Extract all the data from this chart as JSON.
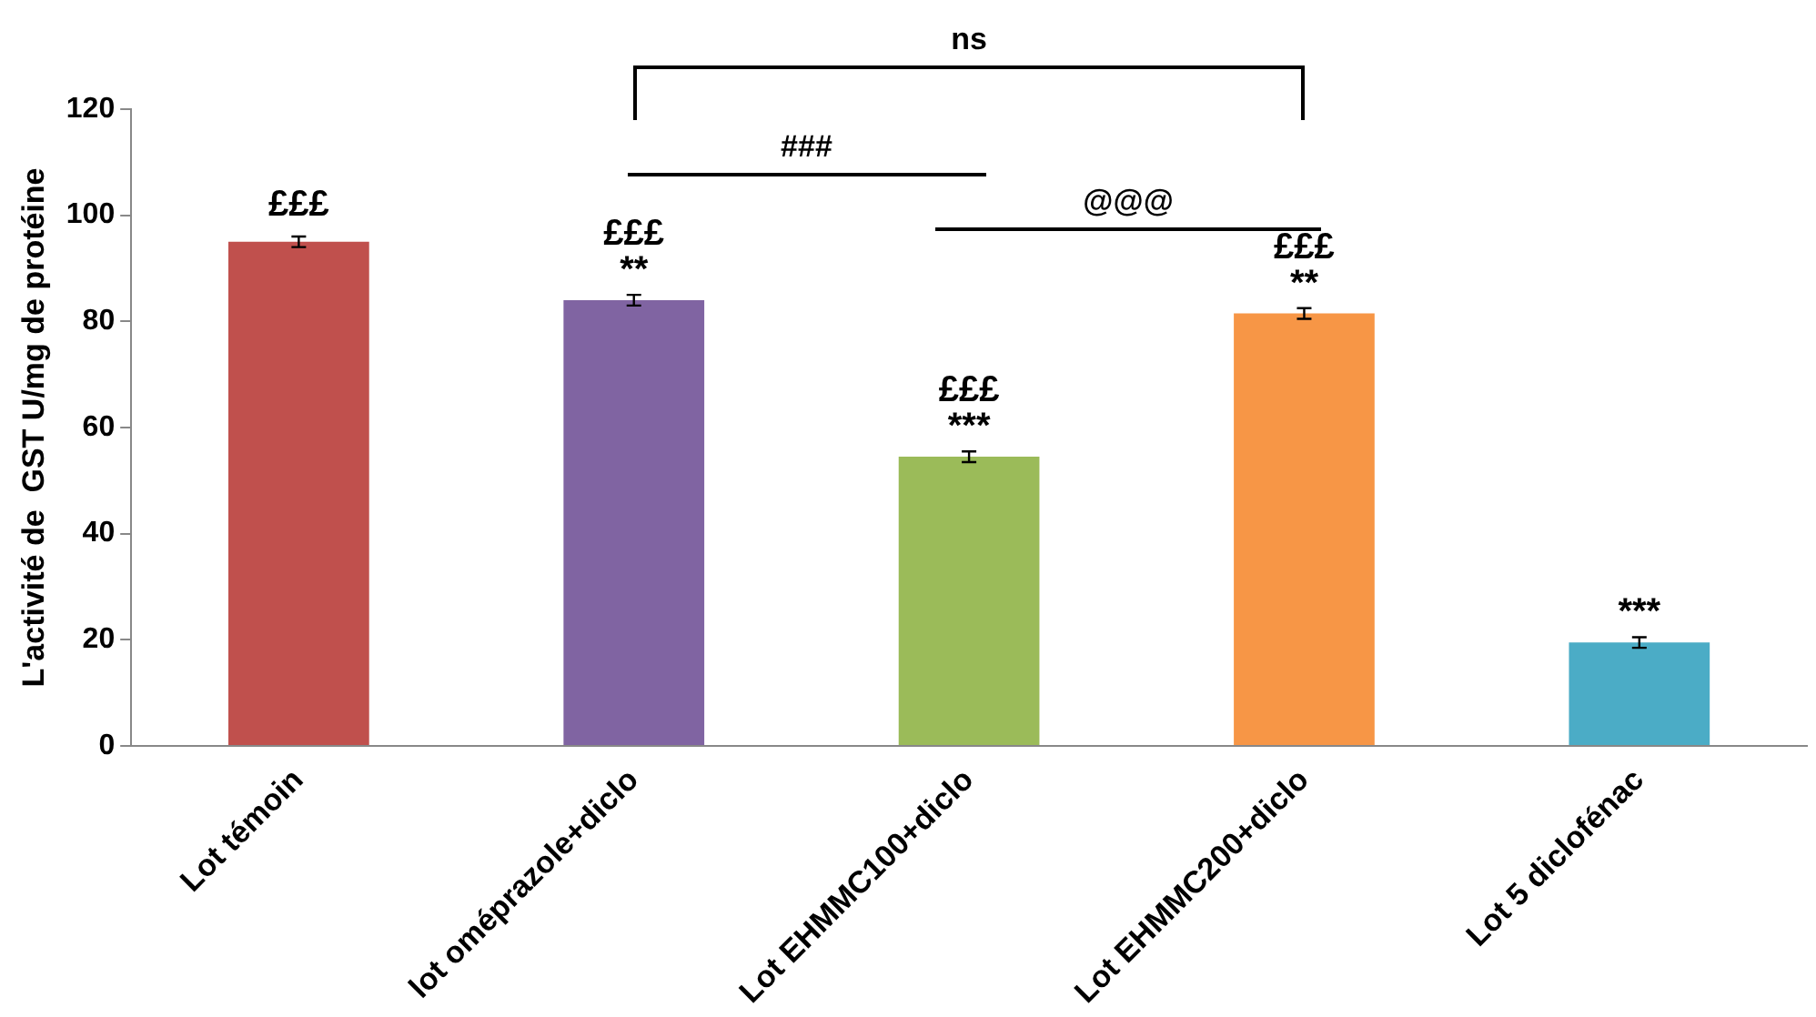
{
  "chart_data": {
    "type": "bar",
    "ylabel": "L'activité de  GST U/mg de protéine",
    "categories": [
      "Lot témoin",
      "lot oméprazole+diclo",
      "Lot EHMMC100+diclo",
      "Lot EHMMC200+diclo",
      "Lot 5 diclofénac"
    ],
    "values": [
      95,
      84,
      54.5,
      81.5,
      19.5
    ],
    "errors": [
      1,
      1,
      1,
      1,
      1
    ],
    "colors": [
      "#c0504d",
      "#8064a2",
      "#9bbb59",
      "#f79646",
      "#4bacc6"
    ],
    "ylim": [
      0,
      120
    ],
    "yticks": [
      0,
      20,
      40,
      60,
      80,
      100,
      120
    ],
    "grid": false,
    "legend": false,
    "annotations": [
      "£££",
      "£££",
      "**",
      "£££",
      "***",
      "£££",
      "**",
      "***",
      "ns",
      "###",
      "@@@"
    ]
  }
}
